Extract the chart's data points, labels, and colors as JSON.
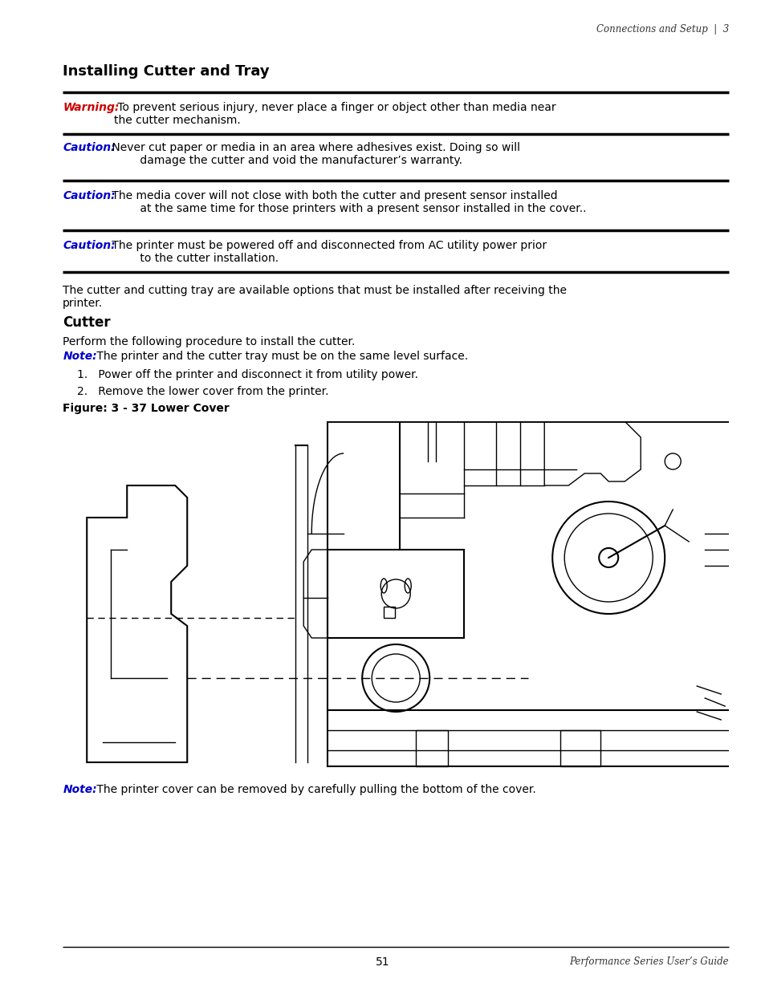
{
  "page_bg": "#ffffff",
  "header_text": "Connections and Setup  |  3",
  "header_font_size": 8.5,
  "title": "Installing Cutter and Tray",
  "title_font_size": 13,
  "warning_label": "Warning:",
  "warning_label_color": "#cc0000",
  "warning_body": " To prevent serious injury, never place a finger or object other than media near\nthe cutter mechanism.",
  "caution1_label": "Caution:",
  "caution1_label_color": "#0000cc",
  "caution1_body": " Never cut paper or media in an area where adhesives exist. Doing so will\n         damage the cutter and void the manufacturer’s warranty.",
  "caution2_label": "Caution:",
  "caution2_label_color": "#0000cc",
  "caution2_body": " The media cover will not close with both the cutter and present sensor installed\n         at the same time for those printers with a present sensor installed in the cover..",
  "caution3_label": "Caution:",
  "caution3_label_color": "#0000cc",
  "caution3_body": " The printer must be powered off and disconnected from AC utility power prior\n         to the cutter installation.",
  "body1": "The cutter and cutting tray are available options that must be installed after receiving the\nprinter.",
  "section_cutter": "Cutter",
  "body2": "Perform the following procedure to install the cutter.",
  "note1_label": "Note:",
  "note1_label_color": "#0000cc",
  "note1_body": " The printer and the cutter tray must be on the same level surface.",
  "list1": "1.   Power off the printer and disconnect it from utility power.",
  "list2": "2.   Remove the lower cover from the printer.",
  "fig_caption": "Figure: 3 - 37 Lower Cover",
  "note2_label": "Note:",
  "note2_label_color": "#0000cc",
  "note2_body": " The printer cover can be removed by carefully pulling the bottom of the cover.",
  "footer_page": "51",
  "footer_guide": "Performance Series User’s Guide",
  "body_fs": 10,
  "thick_lw": 2.5,
  "lm": 0.082,
  "rm": 0.952
}
